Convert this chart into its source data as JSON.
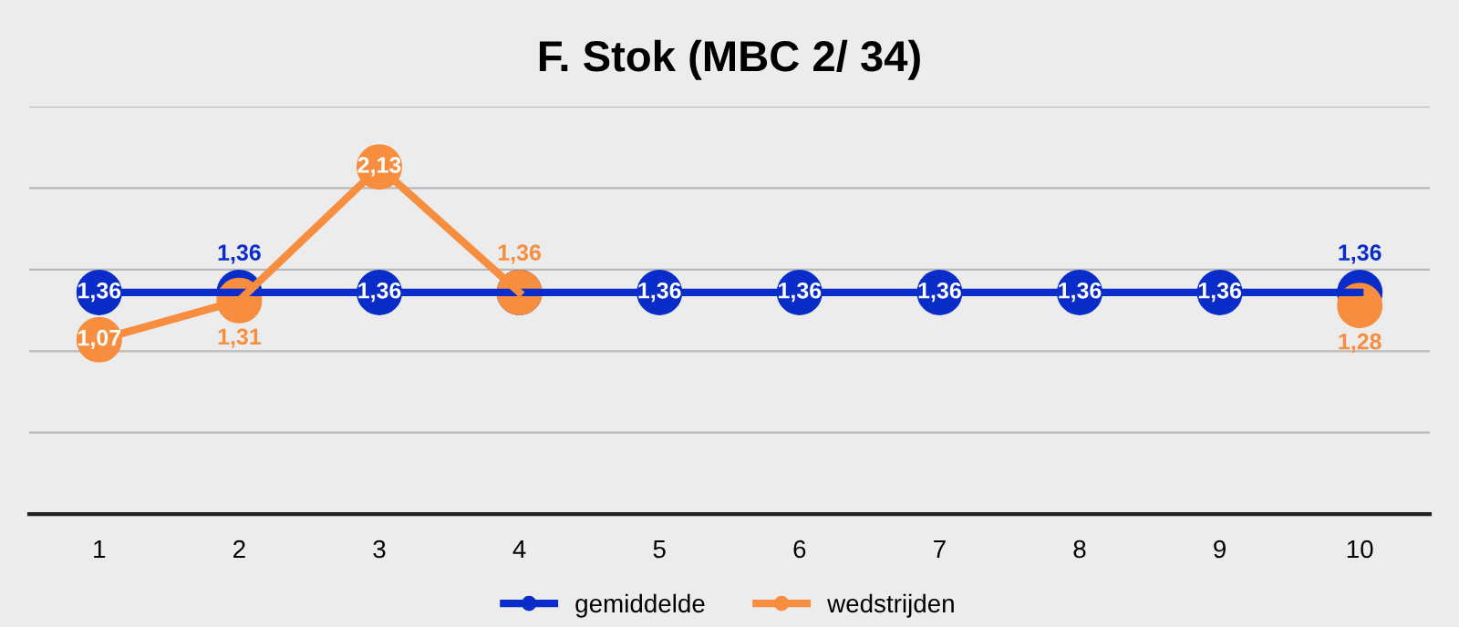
{
  "chart_data": {
    "type": "line",
    "title": "F. Stok (MBC 2/ 34)",
    "categories": [
      "1",
      "2",
      "3",
      "4",
      "5",
      "6",
      "7",
      "8",
      "9",
      "10"
    ],
    "series": [
      {
        "name": "gemiddelde",
        "color": "#0a2cc8",
        "values": [
          1.36,
          1.36,
          1.36,
          1.36,
          1.36,
          1.36,
          1.36,
          1.36,
          1.36,
          1.36
        ],
        "value_labels": [
          "1,36",
          "1,36",
          "1,36",
          null,
          "1,36",
          "1,36",
          "1,36",
          "1,36",
          "1,36",
          "1,36"
        ]
      },
      {
        "name": "wedstrijden",
        "color": "#f78d3f",
        "values": [
          1.07,
          1.31,
          2.13,
          1.36,
          null,
          null,
          null,
          null,
          null,
          1.28
        ],
        "value_labels": [
          "1,07",
          "1,31",
          "2,13",
          "1,36",
          null,
          null,
          null,
          null,
          null,
          "1,28"
        ]
      }
    ],
    "ylim": [
      0,
      2.5
    ],
    "yticks": [
      {
        "value": 0,
        "label": null
      },
      {
        "value": 0.5,
        "label": null
      },
      {
        "value": 1.0,
        "label": null
      },
      {
        "value": 1.5,
        "label": null
      },
      {
        "value": 2.0,
        "label": null
      },
      {
        "value": 2.5,
        "label": null
      }
    ],
    "tick_labels": "x",
    "grid": "y",
    "legend": "bottom",
    "marker": "circle",
    "line_style": "solid"
  }
}
